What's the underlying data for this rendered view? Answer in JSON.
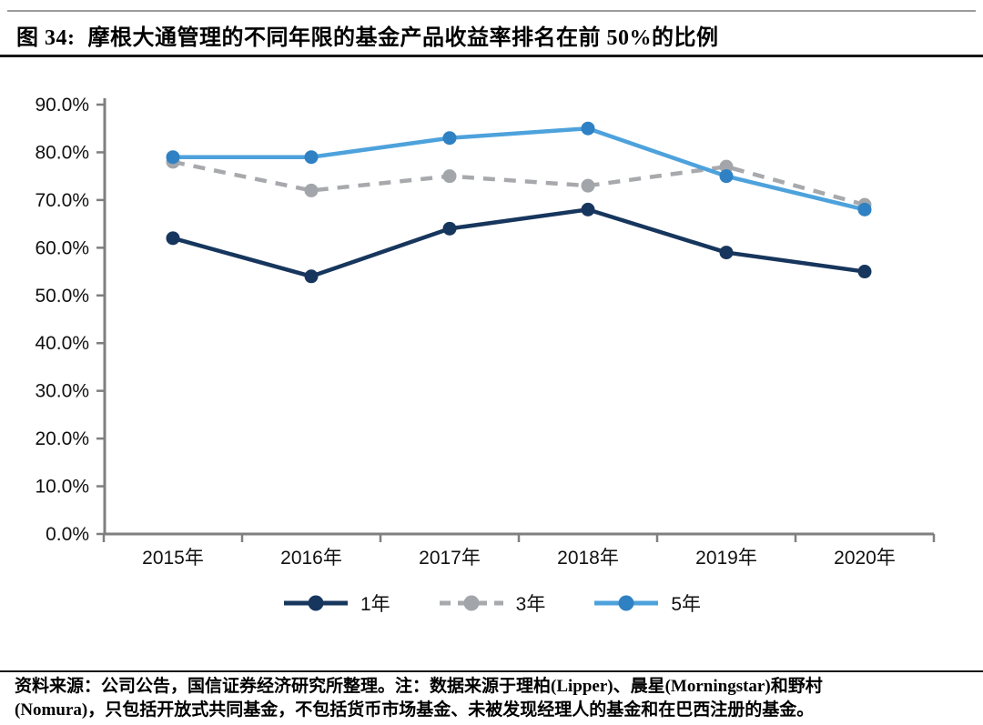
{
  "header": {
    "figure_label": "图 34:",
    "title": "摩根大通管理的不同年限的基金产品收益率排名在前 50%的比例"
  },
  "chart_data": {
    "type": "line",
    "title": "摩根大通管理的不同年限的基金产品收益率排名在前 50%的比例",
    "categories": [
      "2015年",
      "2016年",
      "2017年",
      "2018年",
      "2019年",
      "2020年"
    ],
    "series": [
      {
        "name": "1年",
        "values": [
          62,
          54,
          64,
          68,
          59,
          55
        ],
        "color": "#17365D",
        "marker_color": "#17365D",
        "dash": "solid"
      },
      {
        "name": "3年",
        "values": [
          78,
          72,
          75,
          73,
          77,
          69
        ],
        "color": "#A7A9AC",
        "marker_color": "#A2A6AA",
        "dash": "dashed"
      },
      {
        "name": "5年",
        "values": [
          79,
          79,
          83,
          85,
          75,
          68
        ],
        "color": "#4DA2DC",
        "marker_color": "#2F81C3",
        "dash": "solid"
      }
    ],
    "unit": "%",
    "xlabel": "",
    "ylabel": "",
    "ylim": [
      0,
      90
    ],
    "ytick_step": 10,
    "yticks": [
      "0.0%",
      "10.0%",
      "20.0%",
      "30.0%",
      "40.0%",
      "50.0%",
      "60.0%",
      "70.0%",
      "80.0%",
      "90.0%"
    ],
    "grid": false,
    "legend_position": "bottom",
    "axis_color": "#7F7F7F"
  },
  "footer": {
    "lines": [
      "资料来源：公司公告，国信证券经济研究所整理。注：数据来源于理柏(Lipper)、晨星(Morningstar)和野村",
      "(Nomura)，只包括开放式共同基金，不包括货币市场基金、未被发现经理人的基金和在巴西注册的基金。"
    ]
  }
}
